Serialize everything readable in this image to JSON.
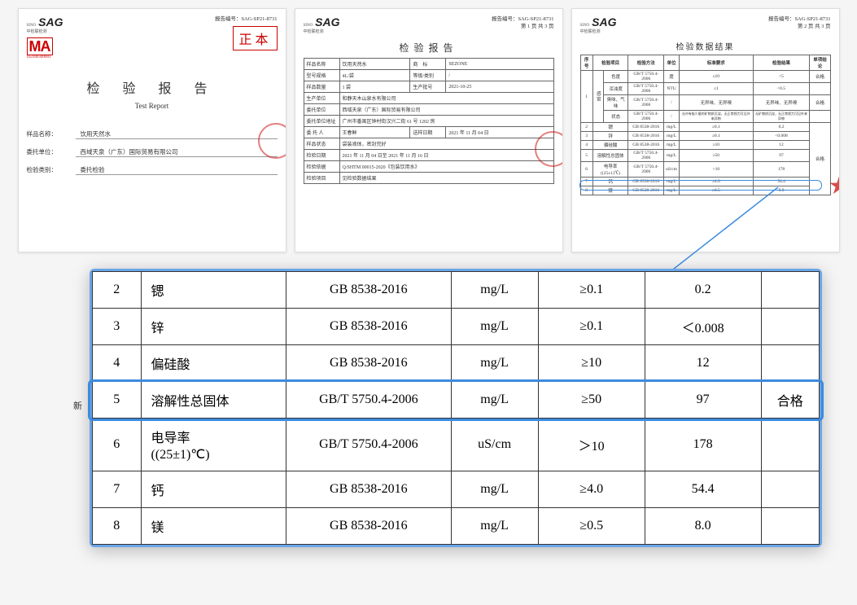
{
  "logo": {
    "brand": "SAG",
    "sub": "中检联检测",
    "sino": "SINO"
  },
  "cma": {
    "text": "MA",
    "number": "163100340001"
  },
  "report_no_label": "报告编号：",
  "report_no": "SAG-SP21-8731",
  "page_label_1": "第 1 页 共 3 页",
  "page_label_2": "第 2 页 共 3 页",
  "stamp": "正本",
  "doc1": {
    "title_cn": "检 验 报 告",
    "title_en": "Test Report",
    "fields": [
      {
        "label": "样品名称：",
        "value": "饮用天然水"
      },
      {
        "label": "委托单位：",
        "value": "西域天泉（广东）国际贸易有限公司"
      },
      {
        "label": "检验类别：",
        "value": "委托检验"
      }
    ]
  },
  "doc2": {
    "title": "检验报告",
    "rows": [
      [
        "样品名称",
        "饮用天然水",
        "商　标",
        "SEZONE"
      ],
      [
        "型号规格",
        "4L/袋",
        "等级/类别",
        "/"
      ],
      [
        "样品数量",
        "1 袋",
        "生产批号",
        "2021-10-25"
      ],
      [
        "生产单位",
        "和静天木山泉水有限公司"
      ],
      [
        "委托单位",
        "西域天泉（广东）国际贸易有限公司"
      ],
      [
        "委托单位地址",
        "广州市番禺区钟村街汉兴二街 61 号 1202 房"
      ],
      [
        "委 托 人",
        "王春鲜",
        "送样日期",
        "2021 年 11 月 04 日"
      ],
      [
        "样品状态",
        "袋装液体，密封完好"
      ],
      [
        "检验日期",
        "2021 年 11 月 04 日至 2021 年 11 月 16 日"
      ],
      [
        "检验依据",
        "Q/SHTM 00015-2020《包装饮用水》"
      ],
      [
        "检验项目",
        "见检验数据结果"
      ]
    ]
  },
  "doc3": {
    "title": "检验数据结果",
    "headers": [
      "序号",
      "检验项目",
      "检验方法",
      "单位",
      "标准要求",
      "检验结果",
      "单项结论"
    ],
    "group_label": "感官",
    "rows": [
      [
        "",
        "色度",
        "GB/T 5750.4-2006",
        "度",
        "≤10",
        "<5",
        "合格"
      ],
      [
        "",
        "浑浊度",
        "GB/T 5750.4-2006",
        "NTU",
        "≤1",
        "<0.5",
        ""
      ],
      [
        "1",
        "臭味、气味",
        "GB/T 5750.4-2006",
        "/",
        "无异味、无异嗅",
        "无异味、无异嗅",
        "合格"
      ],
      [
        "",
        "状态",
        "GB/T 5750.4-2006",
        "/",
        "允许有极少量的矿物质沉淀，无正常视力可见外来异物",
        "无矿物质沉淀，无正常视力可见外来异物",
        ""
      ],
      [
        "2",
        "锶",
        "GB 8538-2016",
        "mg/L",
        "≥0.1",
        "0.2",
        ""
      ],
      [
        "3",
        "锌",
        "GB 8538-2016",
        "mg/L",
        "≥0.1",
        "<0.008",
        ""
      ],
      [
        "4",
        "偏硅酸",
        "GB 8538-2016",
        "mg/L",
        "≥10",
        "12",
        ""
      ],
      [
        "5",
        "溶解性总固体",
        "GB/T 5750.4-2006",
        "mg/L",
        "≥50",
        "97",
        "合格"
      ],
      [
        "6",
        "电导率((25±1)℃)",
        "GB/T 5750.4-2006",
        "uS/cm",
        ">10",
        "178",
        ""
      ],
      [
        "7",
        "钙",
        "GB 8538-2016",
        "mg/L",
        "≥4.0",
        "54.4",
        ""
      ],
      [
        "8",
        "镁",
        "GB 8538-2016",
        "mg/L",
        "≥0.5",
        "8.0",
        ""
      ]
    ]
  },
  "zoom": {
    "rows": [
      {
        "idx": "2",
        "name": "锶",
        "method": "GB 8538-2016",
        "unit": "mg/L",
        "req": "≥0.1",
        "val": "0.2",
        "res": ""
      },
      {
        "idx": "3",
        "name": "锌",
        "method": "GB 8538-2016",
        "unit": "mg/L",
        "req": "≥0.1",
        "val": "＜0.008",
        "res": ""
      },
      {
        "idx": "4",
        "name": "偏硅酸",
        "method": "GB 8538-2016",
        "unit": "mg/L",
        "req": "≥10",
        "val": "12",
        "res": ""
      },
      {
        "idx": "5",
        "name": "溶解性总固体",
        "method": "GB/T 5750.4-2006",
        "unit": "mg/L",
        "req": "≥50",
        "val": "97",
        "res": "合格"
      },
      {
        "idx": "6",
        "name": "电导率\n((25±1)℃)",
        "method": "GB/T 5750.4-2006",
        "unit": "uS/cm",
        "req": "＞10",
        "val": "178",
        "res": ""
      },
      {
        "idx": "7",
        "name": "钙",
        "method": "GB 8538-2016",
        "unit": "mg/L",
        "req": "≥4.0",
        "val": "54.4",
        "res": ""
      },
      {
        "idx": "8",
        "name": "镁",
        "method": "GB 8538-2016",
        "unit": "mg/L",
        "req": "≥0.5",
        "val": "8.0",
        "res": ""
      }
    ],
    "highlight_row": 3
  },
  "side_text": "新",
  "colors": {
    "highlight_border": "#3c8be0",
    "stamp_red": "#c00000",
    "text": "#333333",
    "border": "#666666",
    "bg": "#ffffff"
  }
}
